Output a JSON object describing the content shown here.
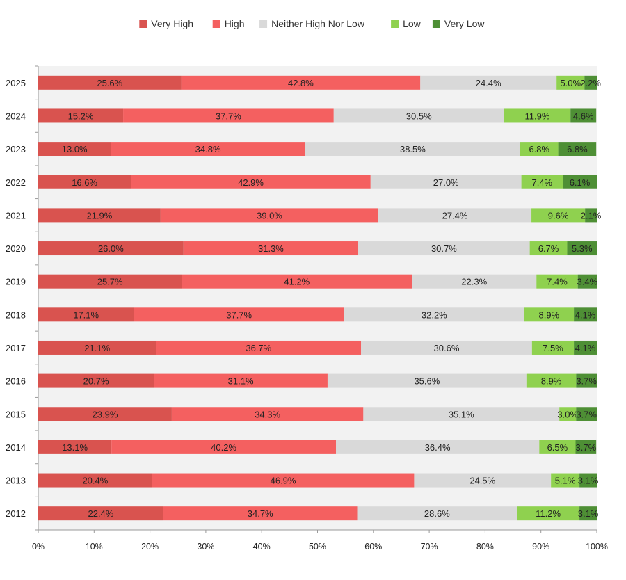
{
  "chart_data": {
    "type": "bar",
    "orientation": "horizontal",
    "stacked": true,
    "percent_stacked": true,
    "categories": [
      "2025",
      "2024",
      "2023",
      "2022",
      "2021",
      "2020",
      "2019",
      "2018",
      "2017",
      "2016",
      "2015",
      "2014",
      "2013",
      "2012"
    ],
    "series": [
      {
        "name": "Very High",
        "color": "#d9534f",
        "values": [
          25.6,
          15.2,
          13.0,
          16.6,
          21.9,
          26.0,
          25.7,
          17.1,
          21.1,
          20.7,
          23.9,
          13.1,
          20.4,
          22.4
        ]
      },
      {
        "name": "High",
        "color": "#f46060",
        "values": [
          42.8,
          37.7,
          34.8,
          42.9,
          39.0,
          31.3,
          41.2,
          37.7,
          36.7,
          31.1,
          34.3,
          40.2,
          46.9,
          34.7
        ]
      },
      {
        "name": "Neither High Nor Low",
        "color": "#d9d9d9",
        "values": [
          24.4,
          30.5,
          38.5,
          27.0,
          27.4,
          30.7,
          22.3,
          32.2,
          30.6,
          35.6,
          35.1,
          36.4,
          24.5,
          28.6
        ]
      },
      {
        "name": "Low",
        "color": "#8fd14f",
        "values": [
          5.0,
          11.9,
          6.8,
          7.4,
          9.6,
          6.7,
          7.4,
          8.9,
          7.5,
          8.9,
          3.0,
          6.5,
          5.1,
          11.2
        ]
      },
      {
        "name": "Very Low",
        "color": "#4e8f35",
        "values": [
          2.2,
          4.6,
          6.8,
          6.1,
          2.1,
          5.3,
          3.4,
          4.1,
          4.1,
          3.7,
          3.7,
          3.7,
          3.1,
          3.1
        ]
      }
    ],
    "xlim": [
      0,
      100
    ],
    "x_ticks": [
      "0%",
      "10%",
      "20%",
      "30%",
      "40%",
      "50%",
      "60%",
      "70%",
      "80%",
      "90%",
      "100%"
    ],
    "legend_position": "top",
    "plot_background": "#f2f2f2",
    "grid": false
  }
}
